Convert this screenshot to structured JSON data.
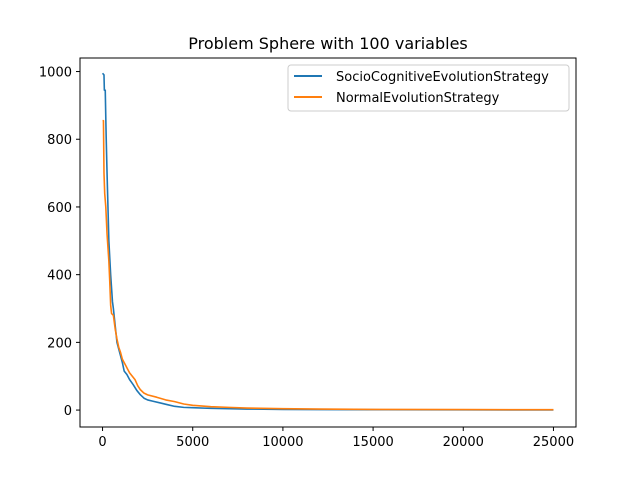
{
  "chart_data": {
    "type": "line",
    "title": "Problem Sphere with 100 variables",
    "xlabel": "",
    "ylabel": "",
    "xlim": [
      -1250,
      26250
    ],
    "ylim": [
      -50,
      1040
    ],
    "x_ticks": [
      0,
      5000,
      10000,
      15000,
      20000,
      25000
    ],
    "y_ticks": [
      0,
      200,
      400,
      600,
      800,
      1000
    ],
    "grid": false,
    "legend_position": "top-right",
    "series": [
      {
        "name": "SocioCognitiveEvolutionStrategy",
        "color": "#1f77b4",
        "points": [
          [
            0,
            995
          ],
          [
            80,
            990
          ],
          [
            100,
            945
          ],
          [
            150,
            945
          ],
          [
            200,
            810
          ],
          [
            250,
            700
          ],
          [
            300,
            600
          ],
          [
            350,
            500
          ],
          [
            400,
            450
          ],
          [
            450,
            400
          ],
          [
            500,
            360
          ],
          [
            550,
            320
          ],
          [
            600,
            300
          ],
          [
            650,
            275
          ],
          [
            700,
            250
          ],
          [
            750,
            225
          ],
          [
            800,
            200
          ],
          [
            900,
            180
          ],
          [
            1000,
            160
          ],
          [
            1100,
            140
          ],
          [
            1200,
            115
          ],
          [
            1350,
            105
          ],
          [
            1500,
            90
          ],
          [
            1700,
            75
          ],
          [
            1900,
            58
          ],
          [
            2100,
            45
          ],
          [
            2300,
            35
          ],
          [
            2500,
            30
          ],
          [
            2800,
            26
          ],
          [
            3200,
            21
          ],
          [
            3600,
            16
          ],
          [
            4000,
            11
          ],
          [
            4500,
            8
          ],
          [
            5000,
            7
          ],
          [
            6000,
            5
          ],
          [
            7000,
            4
          ],
          [
            8000,
            3
          ],
          [
            10000,
            2
          ],
          [
            12000,
            1.5
          ],
          [
            15000,
            1
          ],
          [
            20000,
            0.6
          ],
          [
            25000,
            0.4
          ]
        ]
      },
      {
        "name": "NormalEvolutionStrategy",
        "color": "#ff7f0e",
        "points": [
          [
            0,
            855
          ],
          [
            50,
            855
          ],
          [
            80,
            700
          ],
          [
            120,
            640
          ],
          [
            180,
            600
          ],
          [
            250,
            520
          ],
          [
            300,
            480
          ],
          [
            350,
            440
          ],
          [
            400,
            380
          ],
          [
            450,
            310
          ],
          [
            500,
            285
          ],
          [
            600,
            280
          ],
          [
            700,
            240
          ],
          [
            800,
            210
          ],
          [
            900,
            185
          ],
          [
            1000,
            170
          ],
          [
            1100,
            150
          ],
          [
            1200,
            140
          ],
          [
            1300,
            130
          ],
          [
            1400,
            120
          ],
          [
            1500,
            110
          ],
          [
            1650,
            100
          ],
          [
            1800,
            90
          ],
          [
            1950,
            72
          ],
          [
            2100,
            60
          ],
          [
            2300,
            50
          ],
          [
            2500,
            45
          ],
          [
            3000,
            38
          ],
          [
            3500,
            30
          ],
          [
            4000,
            25
          ],
          [
            4500,
            18
          ],
          [
            5000,
            14
          ],
          [
            6000,
            10
          ],
          [
            7000,
            8
          ],
          [
            8000,
            6
          ],
          [
            10000,
            4
          ],
          [
            12000,
            3
          ],
          [
            15000,
            2
          ],
          [
            20000,
            1.5
          ],
          [
            25000,
            1
          ]
        ]
      }
    ]
  }
}
